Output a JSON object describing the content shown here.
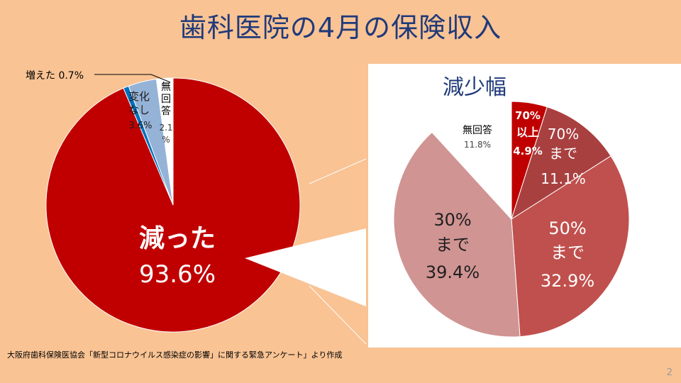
{
  "title": "歯科医院の4月の保険収入",
  "source": "大阪府歯科保険医協会「新型コロナウイルス感染症の影響」に関する緊急アンケート」より作成",
  "page_number": "2",
  "colors": {
    "background": "#F9C394",
    "title": "#1F3A7A",
    "decreased": "#C00000",
    "unchanged": "#95B3D7",
    "increased": "#0070C0",
    "no_answer": "#FFFFFF",
    "over70": "#C00000",
    "upto70": "#A94040",
    "upto50": "#C0504D",
    "upto30": "#D09493"
  },
  "chart_data": [
    {
      "type": "pie",
      "title": "",
      "start": "top, clockwise",
      "slices": [
        {
          "label": "減った",
          "value": 93.6,
          "value_text": "93.6%",
          "color": "#C00000"
        },
        {
          "label": "増えた",
          "value": 0.7,
          "value_text": "0.7%",
          "color": "#0070C0"
        },
        {
          "label": "変化なし",
          "value": 3.6,
          "value_text": "3.6%",
          "color": "#95B3D7"
        },
        {
          "label": "無回答",
          "value": 2.1,
          "value_text": "2.1%",
          "color": "#FFFFFF"
        }
      ]
    },
    {
      "type": "pie",
      "title": "減少幅",
      "start": "top, clockwise",
      "slices": [
        {
          "label": "70%以上",
          "value": 4.9,
          "value_text": "4.9%",
          "color": "#C00000"
        },
        {
          "label": "70%まで",
          "value": 11.1,
          "value_text": "11.1%",
          "color": "#A94040"
        },
        {
          "label": "50%まで",
          "value": 32.9,
          "value_text": "32.9%",
          "color": "#C0504D"
        },
        {
          "label": "30%まで",
          "value": 39.4,
          "value_text": "39.4%",
          "color": "#D09493"
        },
        {
          "label": "無回答",
          "value": 11.8,
          "value_text": "11.8%",
          "color": "#FFFFFF"
        }
      ]
    }
  ]
}
